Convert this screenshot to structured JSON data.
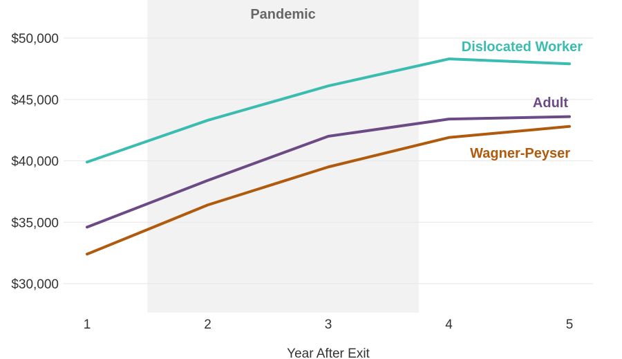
{
  "chart_data": {
    "type": "line",
    "xlabel": "Year After Exit",
    "ylabel": "",
    "x": [
      1,
      2,
      3,
      4,
      5
    ],
    "xlim": [
      1,
      5
    ],
    "ylim": [
      27500,
      52500
    ],
    "yticks": [
      30000,
      35000,
      40000,
      45000,
      50000
    ],
    "yticklabels": [
      "$30,000",
      "$35,000",
      "$40,000",
      "$45,000",
      "$50,000"
    ],
    "xticklabels": [
      "1",
      "2",
      "3",
      "4",
      "5"
    ],
    "grid": true,
    "shaded_region": {
      "label": "Pandemic",
      "x_start": 1.5,
      "x_end": 3.75,
      "color": "#f2f2f2"
    },
    "series": [
      {
        "name": "Dislocated Worker",
        "color": "#3bbcb0",
        "values": [
          39900,
          43300,
          46100,
          48300,
          47900
        ]
      },
      {
        "name": "Adult",
        "color": "#6b4a85",
        "values": [
          34600,
          38400,
          42000,
          43400,
          43600
        ]
      },
      {
        "name": "Wagner-Peyser",
        "color": "#b05a0e",
        "values": [
          32400,
          36400,
          39500,
          41900,
          42800
        ]
      }
    ]
  }
}
